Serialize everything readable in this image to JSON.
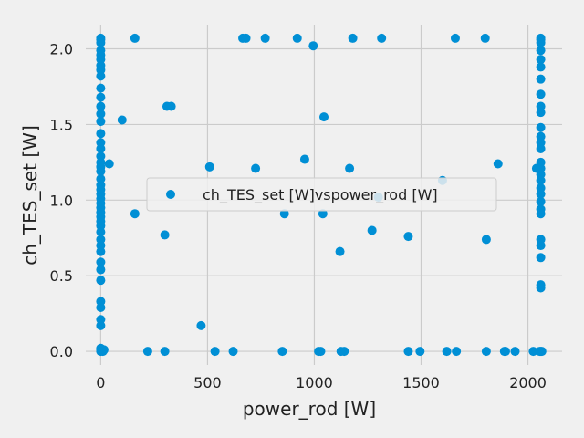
{
  "colors": {
    "background": "#f0f0f0",
    "grid": "#cbcbcb",
    "point": "#008fd5",
    "text": "#222222",
    "legend_border": "#cccccc"
  },
  "chart_data": {
    "type": "scatter",
    "title": "",
    "xlabel": "power_rod [W]",
    "ylabel": "ch_TES_set [W]",
    "xlim": [
      -70,
      2160
    ],
    "ylim": [
      -0.09,
      2.16
    ],
    "xticks": [
      0,
      500,
      1000,
      1500,
      2000
    ],
    "xtick_labels": [
      "0",
      "500",
      "1000",
      "1500",
      "2000"
    ],
    "yticks": [
      0.0,
      0.5,
      1.0,
      1.5,
      2.0
    ],
    "ytick_labels": [
      "0.0",
      "0.5",
      "1.0",
      "1.5",
      "2.0"
    ],
    "grid": true,
    "legend": {
      "position": "center",
      "entries": [
        "ch_TES_set [W]vspower_rod [W]"
      ]
    },
    "series": [
      {
        "name": "ch_TES_set [W]vspower_rod [W]",
        "points": [
          [
            0,
            2.07
          ],
          [
            0,
            2.06
          ],
          [
            0,
            2.04
          ],
          [
            0,
            1.99
          ],
          [
            0,
            1.96
          ],
          [
            0,
            1.93
          ],
          [
            0,
            1.89
          ],
          [
            0,
            1.86
          ],
          [
            0,
            1.82
          ],
          [
            0,
            1.74
          ],
          [
            0,
            1.68
          ],
          [
            0,
            1.62
          ],
          [
            0,
            1.57
          ],
          [
            0,
            1.52
          ],
          [
            0,
            1.44
          ],
          [
            0,
            1.38
          ],
          [
            0,
            1.34
          ],
          [
            0,
            1.29
          ],
          [
            0,
            1.25
          ],
          [
            0,
            1.22
          ],
          [
            0,
            1.19
          ],
          [
            0,
            1.14
          ],
          [
            0,
            1.1
          ],
          [
            0,
            1.07
          ],
          [
            0,
            1.04
          ],
          [
            0,
            1.01
          ],
          [
            0,
            0.98
          ],
          [
            0,
            0.95
          ],
          [
            0,
            0.92
          ],
          [
            0,
            0.89
          ],
          [
            0,
            0.86
          ],
          [
            0,
            0.83
          ],
          [
            0,
            0.79
          ],
          [
            0,
            0.74
          ],
          [
            0,
            0.7
          ],
          [
            0,
            0.66
          ],
          [
            0,
            0.59
          ],
          [
            0,
            0.54
          ],
          [
            0,
            0.47
          ],
          [
            0,
            0.33
          ],
          [
            0,
            0.29
          ],
          [
            0,
            0.21
          ],
          [
            0,
            0.17
          ],
          [
            0,
            0.02
          ],
          [
            0,
            0.01
          ],
          [
            0,
            0.0
          ],
          [
            10,
            0.0
          ],
          [
            15,
            0.01
          ],
          [
            40,
            1.24
          ],
          [
            100,
            1.53
          ],
          [
            160,
            2.07
          ],
          [
            160,
            0.91
          ],
          [
            220,
            0.0
          ],
          [
            300,
            0.77
          ],
          [
            300,
            0.0
          ],
          [
            310,
            1.62
          ],
          [
            330,
            1.62
          ],
          [
            470,
            0.17
          ],
          [
            510,
            1.22
          ],
          [
            535,
            0.0
          ],
          [
            620,
            0.0
          ],
          [
            665,
            2.07
          ],
          [
            680,
            2.07
          ],
          [
            725,
            1.21
          ],
          [
            770,
            2.07
          ],
          [
            850,
            0.0
          ],
          [
            860,
            0.91
          ],
          [
            920,
            2.07
          ],
          [
            955,
            1.27
          ],
          [
            995,
            2.02
          ],
          [
            1020,
            0.0
          ],
          [
            1030,
            0.0
          ],
          [
            1045,
            1.55
          ],
          [
            1040,
            0.91
          ],
          [
            1120,
            0.66
          ],
          [
            1125,
            0.0
          ],
          [
            1140,
            0.0
          ],
          [
            1165,
            1.21
          ],
          [
            1180,
            2.07
          ],
          [
            1270,
            0.8
          ],
          [
            1300,
            1.02
          ],
          [
            1315,
            2.07
          ],
          [
            1440,
            0.76
          ],
          [
            1440,
            0.0
          ],
          [
            1495,
            0.0
          ],
          [
            1600,
            1.13
          ],
          [
            1620,
            0.0
          ],
          [
            1660,
            2.07
          ],
          [
            1665,
            0.0
          ],
          [
            1800,
            2.07
          ],
          [
            1805,
            0.74
          ],
          [
            1805,
            0.0
          ],
          [
            1860,
            1.24
          ],
          [
            1890,
            0.0
          ],
          [
            1895,
            0.0
          ],
          [
            1940,
            0.0
          ],
          [
            2025,
            0.0
          ],
          [
            2040,
            1.21
          ],
          [
            2060,
            2.07
          ],
          [
            2060,
            2.06
          ],
          [
            2060,
            2.04
          ],
          [
            2060,
            1.99
          ],
          [
            2060,
            1.93
          ],
          [
            2060,
            1.88
          ],
          [
            2060,
            1.8
          ],
          [
            2060,
            1.7
          ],
          [
            2060,
            1.62
          ],
          [
            2060,
            1.58
          ],
          [
            2060,
            1.48
          ],
          [
            2060,
            1.42
          ],
          [
            2060,
            1.38
          ],
          [
            2060,
            1.34
          ],
          [
            2060,
            1.25
          ],
          [
            2060,
            1.21
          ],
          [
            2060,
            1.17
          ],
          [
            2060,
            1.13
          ],
          [
            2060,
            1.08
          ],
          [
            2060,
            1.04
          ],
          [
            2060,
            0.99
          ],
          [
            2060,
            0.94
          ],
          [
            2060,
            0.91
          ],
          [
            2060,
            0.74
          ],
          [
            2060,
            0.7
          ],
          [
            2060,
            0.62
          ],
          [
            2060,
            0.44
          ],
          [
            2060,
            0.42
          ],
          [
            2060,
            0.0
          ],
          [
            2055,
            0.0
          ],
          [
            2065,
            0.0
          ]
        ]
      }
    ]
  }
}
